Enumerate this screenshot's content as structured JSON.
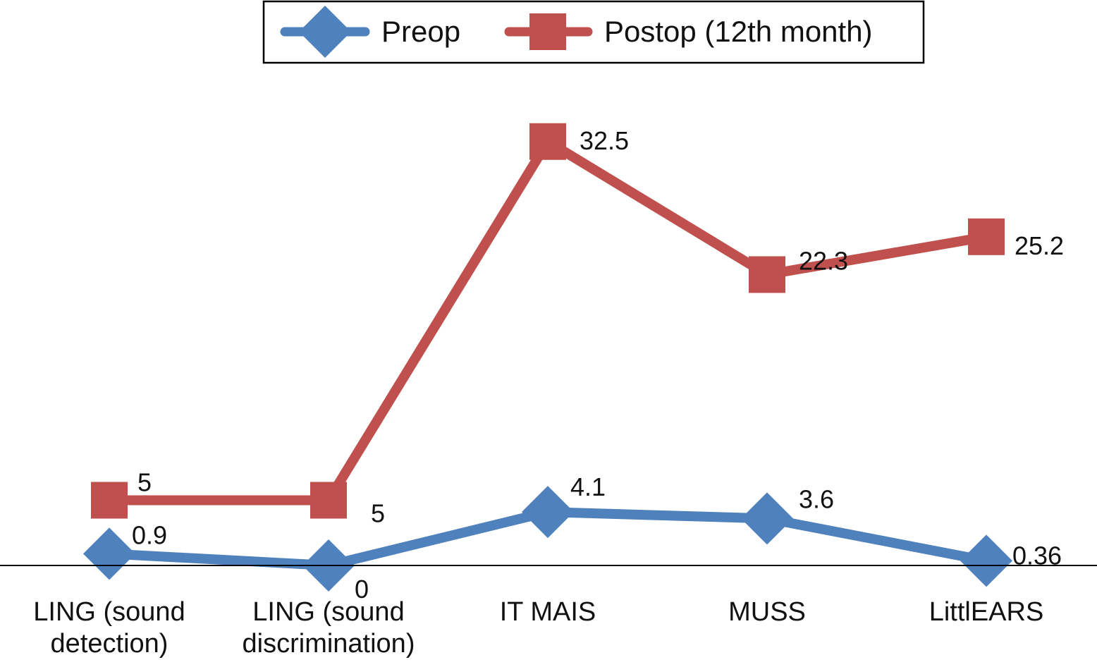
{
  "chart_data": {
    "type": "line",
    "categories": [
      [
        "LING (sound",
        "detection)"
      ],
      [
        "LING (sound",
        "discrimination)"
      ],
      [
        "IT MAIS"
      ],
      [
        "MUSS"
      ],
      [
        "LittlEARS"
      ]
    ],
    "series": [
      {
        "name": "Preop",
        "marker": "diamond",
        "color": "#4F81BD",
        "values": [
          0.9,
          0,
          4.1,
          3.6,
          0.36
        ],
        "labels": [
          "0.9",
          "0",
          "4.1",
          "3.6",
          "0.36"
        ]
      },
      {
        "name": "Postop (12th month)",
        "marker": "square",
        "color": "#C0504D",
        "values": [
          5,
          5,
          32.5,
          22.3,
          25.2
        ],
        "labels": [
          "5",
          "5",
          "32.5",
          "22.3",
          "25.2"
        ]
      }
    ],
    "legend_position": "top-center",
    "grid": false,
    "y_axis_visible": false
  }
}
